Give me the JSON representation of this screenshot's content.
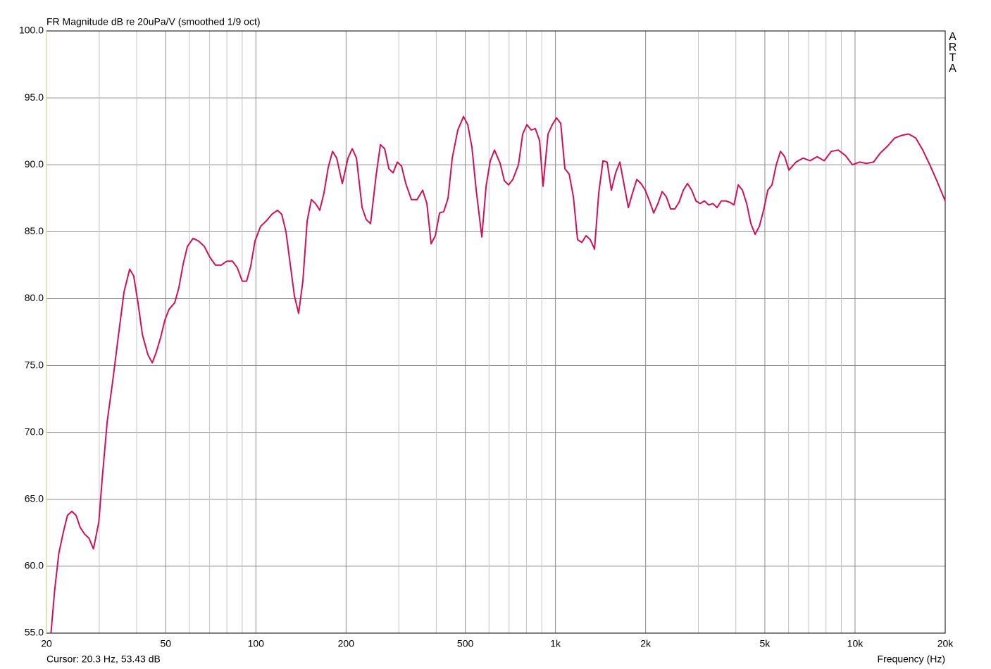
{
  "chart_data": {
    "type": "line",
    "title": "FR Magnitude dB re 20uPa/V (smoothed 1/9 oct)",
    "watermark": "ARTA",
    "status": "Cursor: 20.3 Hz, 53.43 dB",
    "x_label": "Frequency (Hz)",
    "xscale": "log",
    "grid": true,
    "color": "#d0105a",
    "xlim": [
      20,
      20000
    ],
    "ylim": [
      55,
      100
    ],
    "xticks": [
      20,
      50,
      100,
      200,
      500,
      {
        "value": 1000,
        "label": "1k"
      },
      {
        "value": 2000,
        "label": "2k"
      },
      {
        "value": 5000,
        "label": "5k"
      },
      {
        "value": 10000,
        "label": "10k"
      },
      {
        "value": 20000,
        "label": "20k"
      }
    ],
    "minor_xticks": [
      30,
      40,
      60,
      70,
      80,
      90,
      300,
      400,
      600,
      700,
      800,
      900,
      3000,
      4000,
      6000,
      7000,
      8000,
      9000
    ],
    "yticks": [
      {
        "value": 100,
        "label": "100.0"
      },
      {
        "value": 95,
        "label": "95.0"
      },
      {
        "value": 90,
        "label": "90.0"
      },
      {
        "value": 85,
        "label": "85.0"
      },
      {
        "value": 80,
        "label": "80.0"
      },
      {
        "value": 75,
        "label": "75.0"
      },
      {
        "value": 70,
        "label": "70.0"
      },
      {
        "value": 65,
        "label": "65.0"
      },
      {
        "value": 60,
        "label": "60.0"
      },
      {
        "value": 55,
        "label": "55.0"
      }
    ],
    "x": [
      20.7,
      21.3,
      22.0,
      22.8,
      23.5,
      24.3,
      25.1,
      25.9,
      26.8,
      27.7,
      28.7,
      29.9,
      30.7,
      31.9,
      33.3,
      34.7,
      36.3,
      37.9,
      39.1,
      40.4,
      41.8,
      43.6,
      45.1,
      46.5,
      48.1,
      49.7,
      51.3,
      53.6,
      55.3,
      57.2,
      59.1,
      61.7,
      64.4,
      67.3,
      70.2,
      73.3,
      76.6,
      80.0,
      83.5,
      86.7,
      90.1,
      93.1,
      96.1,
      99.3,
      103.7,
      108.3,
      113.1,
      118.1,
      122.0,
      126.0,
      130.2,
      134.5,
      138.9,
      143.5,
      148.3,
      153.2,
      158.2,
      163.4,
      168.8,
      174.4,
      180.2,
      186.1,
      194.3,
      203.0,
      209.7,
      216.6,
      226.2,
      233.6,
      241.4,
      252.0,
      260.4,
      269.0,
      277.9,
      287.1,
      296.6,
      306.3,
      316.4,
      330.4,
      345.1,
      360.3,
      372.2,
      384.5,
      397.2,
      410.3,
      423.8,
      437.8,
      452.3,
      472.2,
      493.2,
      509.5,
      526.3,
      543.7,
      567.8,
      586.6,
      605.9,
      625.9,
      653.6,
      675.2,
      697.5,
      720.5,
      752.5,
      777.3,
      803.0,
      829.5,
      856.9,
      885.2,
      909.2,
      944.4,
      975.6,
      1008,
      1041,
      1075,
      1111,
      1148,
      1185,
      1225,
      1265,
      1307,
      1350,
      1395,
      1441,
      1488,
      1537,
      1588,
      1641,
      1695,
      1751,
      1809,
      1868,
      1930,
      1994,
      2060,
      2128,
      2198,
      2270,
      2345,
      2423,
      2503,
      2586,
      2671,
      2759,
      2850,
      2944,
      3041,
      3142,
      3245,
      3353,
      3463,
      3578,
      3696,
      3818,
      3944,
      4074,
      4209,
      4348,
      4491,
      4640,
      4793,
      4951,
      5115,
      5283,
      5458,
      5638,
      5825,
      6017,
      6352,
      6706,
      7079,
      7473,
      7889,
      8328,
      8791,
      9281,
      9797,
      10342,
      10917,
      11525,
      12166,
      12843,
      13558,
      14311,
      15108,
      15946,
      16830,
      17768,
      18755,
      20000
    ],
    "values": [
      55.0,
      58.2,
      61.0,
      62.6,
      63.8,
      64.1,
      63.8,
      62.9,
      62.4,
      62.1,
      61.3,
      63.3,
      66.6,
      70.8,
      73.9,
      77.1,
      80.5,
      82.2,
      81.7,
      79.7,
      77.3,
      75.8,
      75.2,
      76.0,
      77.1,
      78.4,
      79.2,
      79.7,
      80.8,
      82.6,
      83.9,
      84.5,
      84.3,
      83.9,
      83.1,
      82.5,
      82.5,
      82.8,
      82.8,
      82.3,
      81.3,
      81.3,
      82.4,
      84.3,
      85.4,
      85.8,
      86.3,
      86.6,
      86.3,
      85.0,
      82.6,
      80.2,
      78.9,
      81.3,
      85.8,
      87.4,
      87.1,
      86.6,
      87.9,
      89.8,
      91.0,
      90.5,
      88.6,
      90.5,
      91.2,
      90.5,
      86.8,
      85.9,
      85.6,
      89.2,
      91.5,
      91.2,
      89.7,
      89.4,
      90.2,
      89.9,
      88.6,
      87.4,
      87.4,
      88.1,
      87.1,
      84.1,
      84.7,
      86.4,
      86.5,
      87.5,
      90.5,
      92.6,
      93.6,
      93.0,
      91.3,
      88.1,
      84.6,
      88.4,
      90.3,
      91.1,
      90.1,
      88.8,
      88.5,
      88.9,
      90.0,
      92.3,
      93.0,
      92.6,
      92.7,
      91.8,
      88.4,
      92.3,
      93.0,
      93.5,
      93.1,
      89.7,
      89.3,
      87.6,
      84.4,
      84.2,
      84.7,
      84.4,
      83.7,
      87.9,
      90.3,
      90.2,
      88.1,
      89.4,
      90.2,
      88.5,
      86.8,
      87.9,
      88.9,
      88.6,
      88.1,
      87.3,
      86.4,
      87.1,
      88.0,
      87.6,
      86.7,
      86.7,
      87.2,
      88.1,
      88.6,
      88.1,
      87.3,
      87.1,
      87.3,
      87.0,
      87.1,
      86.8,
      87.3,
      87.3,
      87.2,
      87.0,
      88.5,
      88.1,
      87.1,
      85.6,
      84.8,
      85.4,
      86.6,
      88.1,
      88.5,
      90.0,
      91.0,
      90.6,
      89.6,
      90.2,
      90.5,
      90.3,
      90.6,
      90.3,
      91.0,
      91.1,
      90.7,
      90.0,
      90.2,
      90.1,
      90.2,
      90.9,
      91.4,
      92.0,
      92.2,
      92.3,
      92.0,
      91.1,
      90.0,
      88.8,
      87.3
    ]
  }
}
